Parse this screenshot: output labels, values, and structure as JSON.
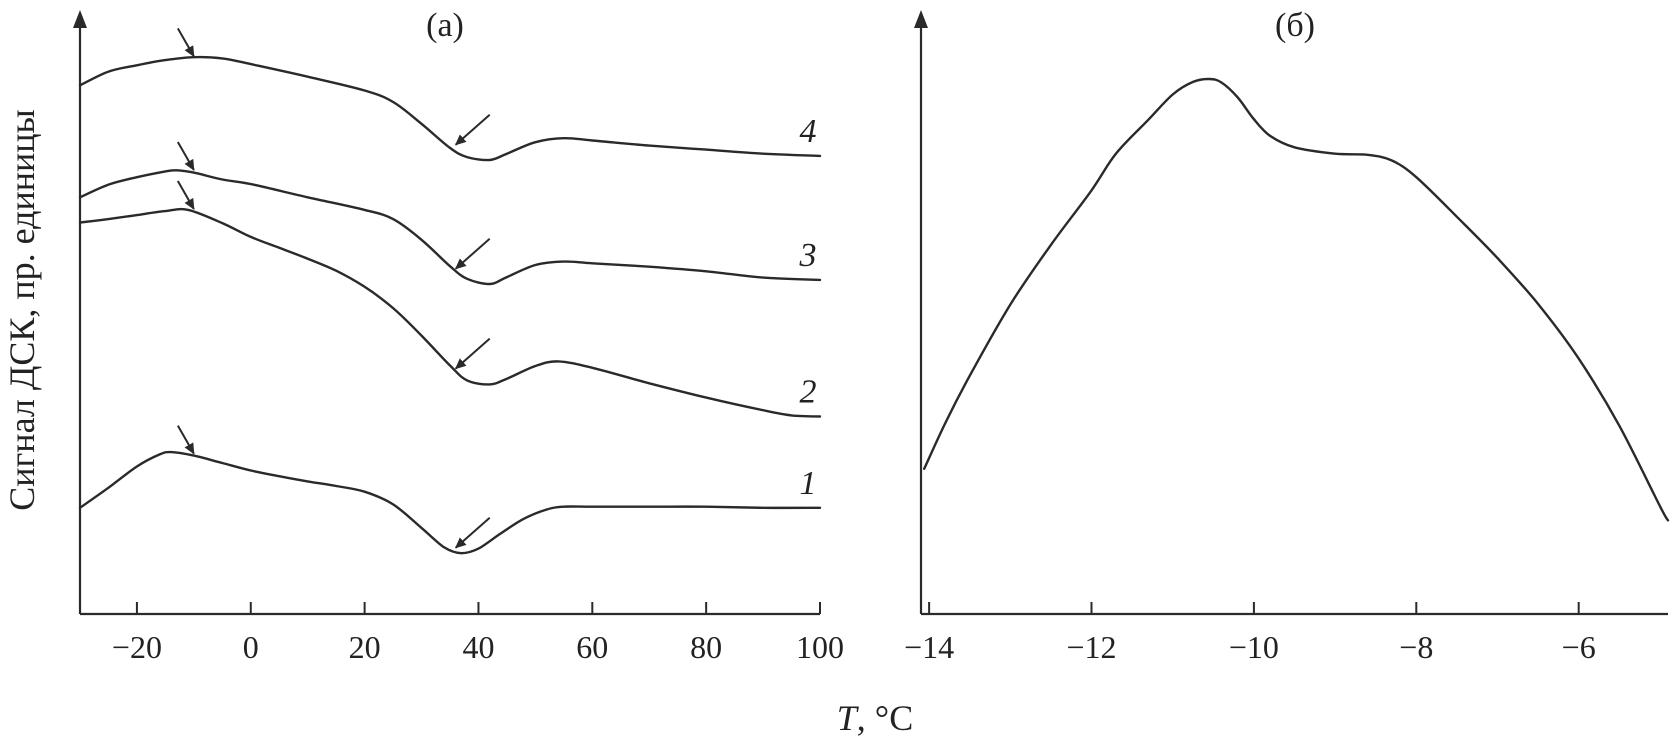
{
  "axis_title_y": "Сигнал ДСК, пр. единицы",
  "axis_title_x_italic": "T",
  "axis_title_x_rest": ", °C",
  "chart_data": [
    {
      "type": "line",
      "title": "(а)",
      "xlabel": "T, °C",
      "ylabel": "Сигнал ДСК, пр. единицы",
      "xlim": [
        -30,
        100
      ],
      "ylim": [
        0,
        100
      ],
      "xticks": [
        -20,
        0,
        20,
        40,
        60,
        80,
        100
      ],
      "xtick_labels": [
        "−20",
        "0",
        "20",
        "40",
        "60",
        "80",
        "100"
      ],
      "yticks_shown": false,
      "grid": false,
      "legend": "none; curves labelled inline at right",
      "series": [
        {
          "name": "1",
          "x": [
            -30,
            -25,
            -20,
            -16,
            -14,
            -10,
            -5,
            0,
            5,
            10,
            15,
            20,
            25,
            30,
            34,
            37,
            40,
            44,
            48,
            52,
            55,
            60,
            70,
            80,
            90,
            100
          ],
          "y": [
            18.5,
            22,
            25.7,
            27.8,
            28.2,
            27.6,
            26.3,
            25,
            24,
            23.1,
            22.3,
            21.3,
            19.1,
            15,
            11.6,
            10.6,
            11.4,
            14.1,
            16.6,
            18.2,
            18.7,
            18.7,
            18.7,
            18.7,
            18.5,
            18.5
          ],
          "markers": [
            {
              "x": -10,
              "y": 27.6
            },
            {
              "x": 36,
              "y": 11.2
            }
          ]
        },
        {
          "name": "2",
          "x": [
            -30,
            -25,
            -20,
            -15,
            -11,
            -5,
            0,
            5,
            10,
            15,
            20,
            25,
            30,
            35,
            38,
            42,
            45,
            50,
            54,
            60,
            70,
            80,
            90,
            95,
            100
          ],
          "y": [
            68.2,
            68.8,
            69.5,
            70.2,
            70.4,
            68.1,
            65.7,
            63.8,
            61.9,
            59.8,
            57,
            53.3,
            48.5,
            43.3,
            40.7,
            40,
            41,
            43.2,
            44,
            42.9,
            40.2,
            37.7,
            35.5,
            34.6,
            34.4
          ],
          "markers": [
            {
              "x": -10,
              "y": 70.2
            },
            {
              "x": 36,
              "y": 42.4
            }
          ]
        },
        {
          "name": "3",
          "x": [
            -30,
            -25,
            -20,
            -15,
            -13,
            -10,
            -5,
            0,
            10,
            20,
            25,
            30,
            35,
            38,
            42,
            45,
            50,
            55,
            60,
            70,
            80,
            90,
            100
          ],
          "y": [
            72.6,
            74.8,
            76.1,
            77.1,
            77.3,
            76.9,
            75.7,
            74.9,
            72.6,
            70.4,
            68.8,
            65.2,
            60.6,
            58.4,
            57.5,
            58.7,
            60.8,
            61.4,
            61.1,
            60.5,
            59.7,
            58.6,
            58.2
          ],
          "markers": [
            {
              "x": -10,
              "y": 77
            },
            {
              "x": 36,
              "y": 59.8
            }
          ]
        },
        {
          "name": "4",
          "x": [
            -30,
            -25,
            -20,
            -15,
            -10,
            -5,
            0,
            10,
            20,
            25,
            30,
            35,
            38,
            42,
            45,
            50,
            55,
            60,
            70,
            80,
            90,
            100
          ],
          "y": [
            92.1,
            94.5,
            95.6,
            96.5,
            97,
            96.8,
            95.8,
            93.6,
            91.2,
            89.2,
            85.4,
            81.2,
            79.6,
            79.1,
            80.2,
            82.2,
            82.9,
            82.5,
            81.6,
            80.9,
            80.2,
            79.8
          ],
          "markers": [
            {
              "x": -10,
              "y": 96.8
            },
            {
              "x": 36,
              "y": 81.4
            }
          ]
        }
      ]
    },
    {
      "type": "line",
      "title": "(б)",
      "xlabel": "T, °C",
      "ylabel": "",
      "xlim": [
        -14.1,
        -4.9
      ],
      "ylim": [
        0,
        100
      ],
      "xticks": [
        -14,
        -12,
        -10,
        -8,
        -6
      ],
      "xtick_labels": [
        "−14",
        "−12",
        "−10",
        "−8",
        "−6"
      ],
      "yticks_shown": false,
      "grid": false,
      "series": [
        {
          "name": "",
          "x": [
            -14.06,
            -13.8,
            -13.5,
            -13.0,
            -12.5,
            -12.0,
            -11.7,
            -11.3,
            -11.0,
            -10.75,
            -10.55,
            -10.4,
            -10.2,
            -10.0,
            -9.8,
            -9.5,
            -9.0,
            -8.6,
            -8.3,
            -8.0,
            -7.5,
            -7.0,
            -6.5,
            -6.0,
            -5.5,
            -5.0,
            -4.9
          ],
          "y": [
            25.3,
            33.3,
            41.5,
            53.9,
            64.3,
            73.8,
            80.2,
            86.1,
            90.5,
            92.7,
            93.2,
            92.6,
            90.0,
            86.2,
            83.3,
            81.3,
            80.2,
            80.0,
            79.0,
            76.1,
            69.2,
            62.0,
            54.0,
            44.5,
            32.8,
            18.8,
            16.3
          ]
        }
      ]
    }
  ]
}
